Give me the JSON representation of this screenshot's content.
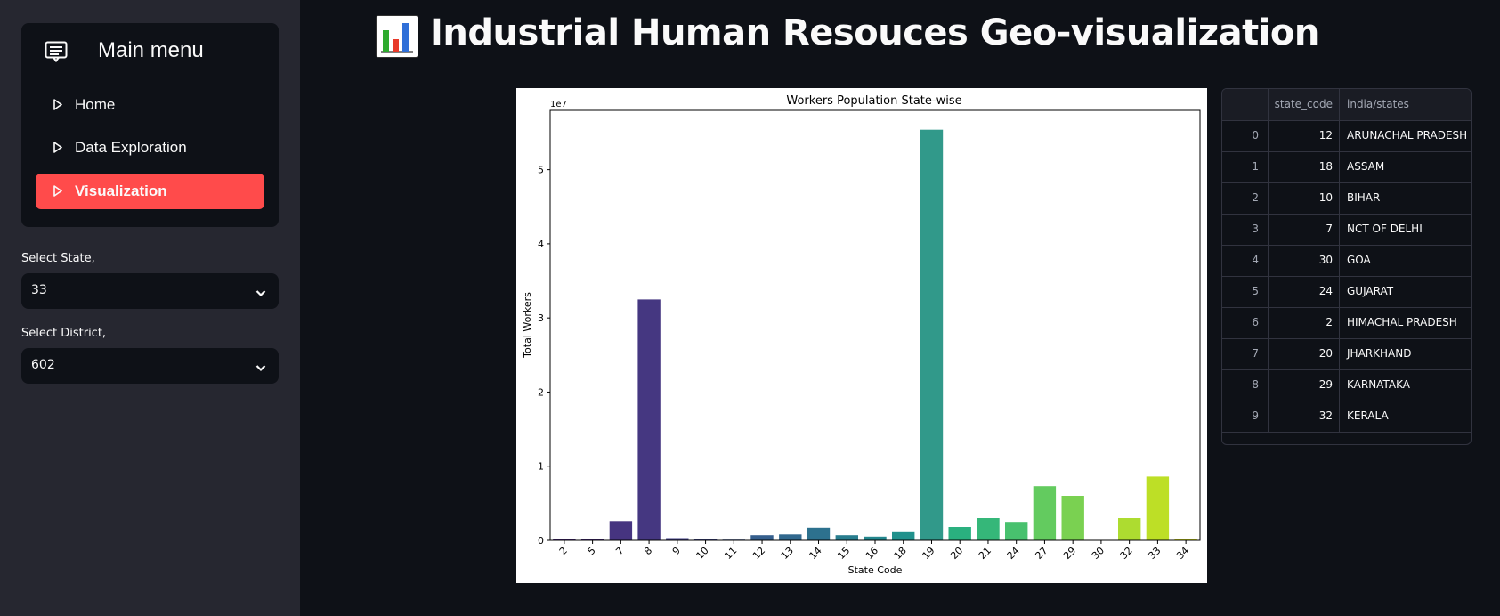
{
  "sidebar": {
    "menu_title": "Main menu",
    "items": [
      {
        "label": "Home",
        "icon": "caret-right-icon",
        "active": false
      },
      {
        "label": "Data Exploration",
        "icon": "caret-right-icon",
        "active": false
      },
      {
        "label": "Visualization",
        "icon": "caret-right-icon",
        "active": true
      }
    ],
    "state_select": {
      "label": "Select State,",
      "value": "33"
    },
    "district_select": {
      "label": "Select District,",
      "value": "602"
    }
  },
  "header": {
    "title": "Industrial Human Resouces Geo-visualization",
    "icon": "bar-chart-icon"
  },
  "colors": {
    "accent": "#ff4b4b",
    "sidebar_bg": "#262730",
    "main_bg": "#0e1117"
  },
  "chart_data": {
    "type": "bar",
    "title": "Workers Population State-wise",
    "xlabel": "State Code",
    "ylabel": "Total Workers",
    "scale_note": "1e7",
    "ylim": [
      0,
      5.8
    ],
    "yticks": [
      0,
      1,
      2,
      3,
      4,
      5
    ],
    "categories": [
      "2",
      "5",
      "7",
      "8",
      "9",
      "10",
      "11",
      "12",
      "13",
      "14",
      "15",
      "16",
      "18",
      "19",
      "20",
      "21",
      "24",
      "27",
      "29",
      "30",
      "32",
      "33",
      "34"
    ],
    "values": [
      0.02,
      0.02,
      0.26,
      3.25,
      0.03,
      0.02,
      0.01,
      0.07,
      0.08,
      0.17,
      0.07,
      0.05,
      0.11,
      5.54,
      0.18,
      0.3,
      0.25,
      0.73,
      0.6,
      0.0,
      0.3,
      0.86,
      0.02
    ],
    "colors": [
      "#482878",
      "#472d7b",
      "#463480",
      "#453781",
      "#423f85",
      "#3f4788",
      "#3b528b",
      "#355f8d",
      "#31688e",
      "#2d718e",
      "#287d8e",
      "#24878e",
      "#21918c",
      "#31998a",
      "#2ab07f",
      "#35b779",
      "#48c16e",
      "#63cb5f",
      "#7ad151",
      "#95d840",
      "#addc30",
      "#bddf26",
      "#d8e219"
    ]
  },
  "table": {
    "columns": [
      "",
      "state_code",
      "india/states"
    ],
    "rows": [
      [
        "0",
        "12",
        "ARUNACHAL PRADESH"
      ],
      [
        "1",
        "18",
        "ASSAM"
      ],
      [
        "2",
        "10",
        "BIHAR"
      ],
      [
        "3",
        "7",
        "NCT OF DELHI"
      ],
      [
        "4",
        "30",
        "GOA"
      ],
      [
        "5",
        "24",
        "GUJARAT"
      ],
      [
        "6",
        "2",
        "HIMACHAL PRADESH"
      ],
      [
        "7",
        "20",
        "JHARKHAND"
      ],
      [
        "8",
        "29",
        "KARNATAKA"
      ],
      [
        "9",
        "32",
        "KERALA"
      ]
    ]
  }
}
